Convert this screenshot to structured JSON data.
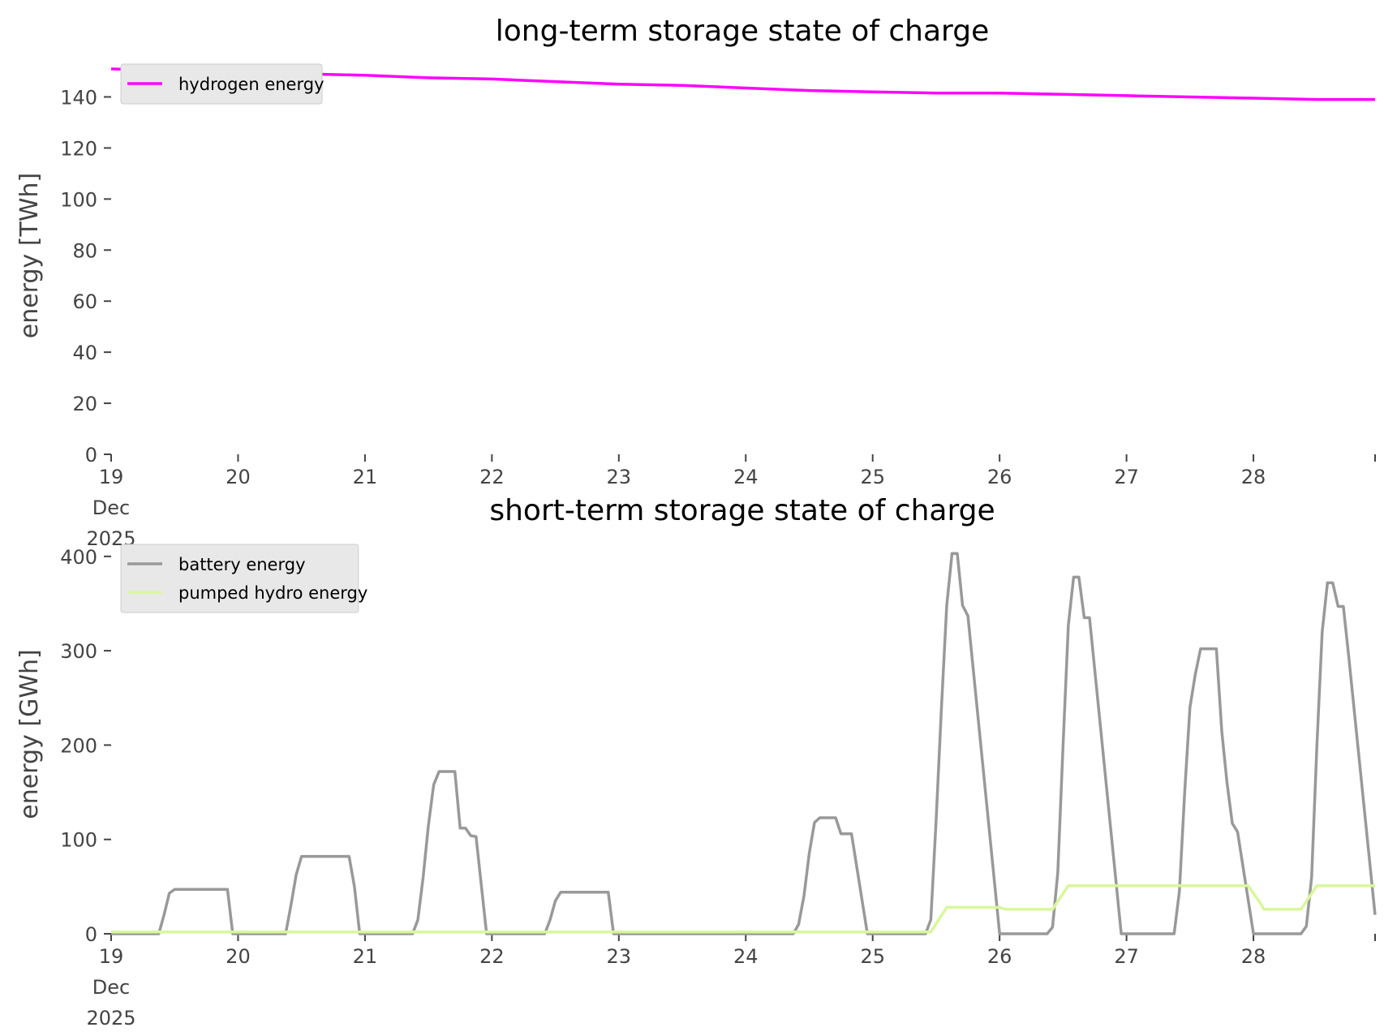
{
  "chart_data": [
    {
      "type": "line",
      "title": "long-term storage state of charge",
      "ylabel": "energy [TWh]",
      "xlabel": "",
      "x_tick_labels": [
        "19\nDec\n2025",
        "20",
        "21",
        "22",
        "23",
        "24",
        "25",
        "26",
        "27",
        "28"
      ],
      "x_ticks": [
        "2025-12-19",
        "2025-12-20",
        "2025-12-21",
        "2025-12-22",
        "2025-12-23",
        "2025-12-24",
        "2025-12-25",
        "2025-12-26",
        "2025-12-27",
        "2025-12-28"
      ],
      "xlim": [
        "2025-12-19T00:00",
        "2025-12-28T23:00"
      ],
      "y_ticks": [
        0,
        20,
        40,
        60,
        80,
        100,
        120,
        140
      ],
      "ylim": [
        0,
        150
      ],
      "grid": false,
      "legend_position": "upper-left",
      "series": [
        {
          "name": "hydrogen energy",
          "color": "#ff00ff",
          "points": [
            [
              "2025-12-19T00:00",
              151
            ],
            [
              "2025-12-19T12:00",
              150
            ],
            [
              "2025-12-20T00:00",
              149.5
            ],
            [
              "2025-12-20T12:00",
              149
            ],
            [
              "2025-12-21T00:00",
              148.5
            ],
            [
              "2025-12-21T12:00",
              147.5
            ],
            [
              "2025-12-22T00:00",
              147
            ],
            [
              "2025-12-22T12:00",
              146
            ],
            [
              "2025-12-23T00:00",
              145
            ],
            [
              "2025-12-23T12:00",
              144.5
            ],
            [
              "2025-12-24T00:00",
              143.5
            ],
            [
              "2025-12-24T12:00",
              142.5
            ],
            [
              "2025-12-25T00:00",
              142
            ],
            [
              "2025-12-25T12:00",
              141.5
            ],
            [
              "2025-12-26T00:00",
              141.5
            ],
            [
              "2025-12-26T12:00",
              141
            ],
            [
              "2025-12-27T00:00",
              140.5
            ],
            [
              "2025-12-27T12:00",
              140
            ],
            [
              "2025-12-28T00:00",
              139.5
            ],
            [
              "2025-12-28T12:00",
              139
            ],
            [
              "2025-12-28T23:00",
              139
            ]
          ]
        }
      ]
    },
    {
      "type": "line",
      "title": "short-term storage state of charge",
      "ylabel": "energy [GWh]",
      "xlabel": "",
      "x_tick_labels": [
        "19\nDec\n2025",
        "20",
        "21",
        "22",
        "23",
        "24",
        "25",
        "26",
        "27",
        "28"
      ],
      "x_ticks": [
        "2025-12-19",
        "2025-12-20",
        "2025-12-21",
        "2025-12-22",
        "2025-12-23",
        "2025-12-24",
        "2025-12-25",
        "2025-12-26",
        "2025-12-27",
        "2025-12-28"
      ],
      "xlim": [
        "2025-12-19T00:00",
        "2025-12-28T23:00"
      ],
      "y_ticks": [
        0,
        100,
        200,
        300,
        400
      ],
      "ylim": [
        0,
        405
      ],
      "grid": false,
      "legend_position": "upper-left",
      "series": [
        {
          "name": "battery energy",
          "color": "#999999",
          "points": [
            [
              "2025-12-19T00:00",
              0
            ],
            [
              "2025-12-19T09:00",
              0
            ],
            [
              "2025-12-19T10:00",
              20
            ],
            [
              "2025-12-19T11:00",
              43
            ],
            [
              "2025-12-19T12:00",
              47
            ],
            [
              "2025-12-19T22:00",
              47
            ],
            [
              "2025-12-19T23:00",
              0
            ],
            [
              "2025-12-20T09:00",
              0
            ],
            [
              "2025-12-20T10:00",
              30
            ],
            [
              "2025-12-20T11:00",
              63
            ],
            [
              "2025-12-20T12:00",
              82
            ],
            [
              "2025-12-20T21:00",
              82
            ],
            [
              "2025-12-20T22:00",
              50
            ],
            [
              "2025-12-20T23:00",
              0
            ],
            [
              "2025-12-21T09:00",
              0
            ],
            [
              "2025-12-21T10:00",
              15
            ],
            [
              "2025-12-21T11:00",
              60
            ],
            [
              "2025-12-21T12:00",
              115
            ],
            [
              "2025-12-21T13:00",
              158
            ],
            [
              "2025-12-21T14:00",
              172
            ],
            [
              "2025-12-21T17:00",
              172
            ],
            [
              "2025-12-21T18:00",
              112
            ],
            [
              "2025-12-21T19:00",
              112
            ],
            [
              "2025-12-21T20:00",
              104
            ],
            [
              "2025-12-21T21:00",
              103
            ],
            [
              "2025-12-21T23:00",
              0
            ],
            [
              "2025-12-22T10:00",
              0
            ],
            [
              "2025-12-22T11:00",
              15
            ],
            [
              "2025-12-22T12:00",
              35
            ],
            [
              "2025-12-22T13:00",
              44
            ],
            [
              "2025-12-22T22:00",
              44
            ],
            [
              "2025-12-22T23:00",
              0
            ],
            [
              "2025-12-24T09:00",
              0
            ],
            [
              "2025-12-24T10:00",
              10
            ],
            [
              "2025-12-24T11:00",
              40
            ],
            [
              "2025-12-24T12:00",
              85
            ],
            [
              "2025-12-24T13:00",
              118
            ],
            [
              "2025-12-24T14:00",
              123
            ],
            [
              "2025-12-24T17:00",
              123
            ],
            [
              "2025-12-24T18:00",
              106
            ],
            [
              "2025-12-24T20:00",
              106
            ],
            [
              "2025-12-24T23:00",
              0
            ],
            [
              "2025-12-25T10:00",
              0
            ],
            [
              "2025-12-25T11:00",
              15
            ],
            [
              "2025-12-25T12:00",
              120
            ],
            [
              "2025-12-25T13:00",
              240
            ],
            [
              "2025-12-25T14:00",
              348
            ],
            [
              "2025-12-25T15:00",
              403
            ],
            [
              "2025-12-25T16:00",
              403
            ],
            [
              "2025-12-25T17:00",
              348
            ],
            [
              "2025-12-25T18:00",
              337
            ],
            [
              "2025-12-26T00:00",
              0
            ],
            [
              "2025-12-26T09:00",
              0
            ],
            [
              "2025-12-26T10:00",
              7
            ],
            [
              "2025-12-26T11:00",
              65
            ],
            [
              "2025-12-26T12:00",
              200
            ],
            [
              "2025-12-26T13:00",
              327
            ],
            [
              "2025-12-26T14:00",
              378
            ],
            [
              "2025-12-26T15:00",
              378
            ],
            [
              "2025-12-26T16:00",
              335
            ],
            [
              "2025-12-26T17:00",
              335
            ],
            [
              "2025-12-26T23:00",
              0
            ],
            [
              "2025-12-27T09:00",
              0
            ],
            [
              "2025-12-27T10:00",
              45
            ],
            [
              "2025-12-27T11:00",
              150
            ],
            [
              "2025-12-27T12:00",
              240
            ],
            [
              "2025-12-27T13:00",
              275
            ],
            [
              "2025-12-27T14:00",
              302
            ],
            [
              "2025-12-27T17:00",
              302
            ],
            [
              "2025-12-27T18:00",
              215
            ],
            [
              "2025-12-27T19:00",
              160
            ],
            [
              "2025-12-27T20:00",
              117
            ],
            [
              "2025-12-27T21:00",
              108
            ],
            [
              "2025-12-28T00:00",
              0
            ],
            [
              "2025-12-28T09:00",
              0
            ],
            [
              "2025-12-28T10:00",
              8
            ],
            [
              "2025-12-28T11:00",
              60
            ],
            [
              "2025-12-28T12:00",
              200
            ],
            [
              "2025-12-28T13:00",
              320
            ],
            [
              "2025-12-28T14:00",
              372
            ],
            [
              "2025-12-28T15:00",
              372
            ],
            [
              "2025-12-28T16:00",
              347
            ],
            [
              "2025-12-28T17:00",
              347
            ],
            [
              "2025-12-28T18:00",
              295
            ],
            [
              "2025-12-28T23:00",
              20
            ]
          ]
        },
        {
          "name": "pumped hydro energy",
          "color": "#d9f79a",
          "points": [
            [
              "2025-12-19T00:00",
              2
            ],
            [
              "2025-12-25T11:00",
              2
            ],
            [
              "2025-12-25T14:00",
              28
            ],
            [
              "2025-12-26T00:00",
              28
            ],
            [
              "2025-12-26T01:00",
              26
            ],
            [
              "2025-12-26T10:00",
              26
            ],
            [
              "2025-12-26T13:00",
              51
            ],
            [
              "2025-12-27T23:00",
              51
            ],
            [
              "2025-12-28T01:00",
              35
            ],
            [
              "2025-12-28T02:00",
              26
            ],
            [
              "2025-12-28T09:00",
              26
            ],
            [
              "2025-12-28T12:00",
              51
            ],
            [
              "2025-12-28T23:00",
              51
            ]
          ]
        }
      ]
    }
  ]
}
